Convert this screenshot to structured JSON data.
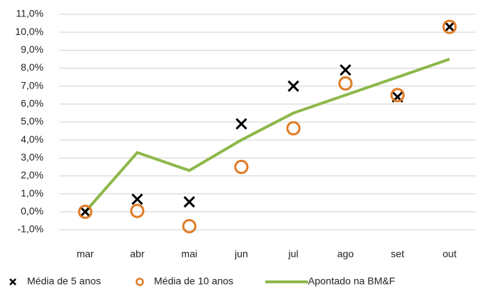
{
  "chart_data": {
    "type": "line",
    "categories": [
      "mar",
      "abr",
      "mai",
      "jun",
      "jul",
      "ago",
      "set",
      "out"
    ],
    "series": [
      {
        "name": "Média de 5 anos",
        "color": "#000000",
        "marker": "x",
        "values": [
          0,
          0.7,
          0.55,
          4.9,
          7.0,
          7.9,
          6.4,
          10.3
        ]
      },
      {
        "name": "Média de 10 anos",
        "color": "#e07b24",
        "marker": "circle",
        "values": [
          0,
          0.05,
          -0.8,
          2.5,
          4.65,
          7.15,
          6.5,
          10.3
        ]
      },
      {
        "name": "Apontado na BM&F",
        "color": "#8db84a",
        "marker": "line",
        "values": [
          0,
          3.3,
          2.3,
          4.0,
          5.5,
          6.5,
          7.5,
          8.5
        ]
      }
    ],
    "ylim": [
      -1,
      11
    ],
    "yticks": [
      {
        "value": -1,
        "label": "-1,0%"
      },
      {
        "value": 0,
        "label": "0,0%"
      },
      {
        "value": 1,
        "label": "1,0%"
      },
      {
        "value": 2,
        "label": "2,0%"
      },
      {
        "value": 3,
        "label": "3,0%"
      },
      {
        "value": 4,
        "label": "4,0%"
      },
      {
        "value": 5,
        "label": "5,0%"
      },
      {
        "value": 6,
        "label": "6,0%"
      },
      {
        "value": 7,
        "label": "7,0%"
      },
      {
        "value": 8,
        "label": "8,0%"
      },
      {
        "value": 9,
        "label": "9,0%"
      },
      {
        "value": 10,
        "label": "10,0%"
      },
      {
        "value": 11,
        "label": "11,0%"
      }
    ],
    "grid": true,
    "legend": "bottom"
  }
}
